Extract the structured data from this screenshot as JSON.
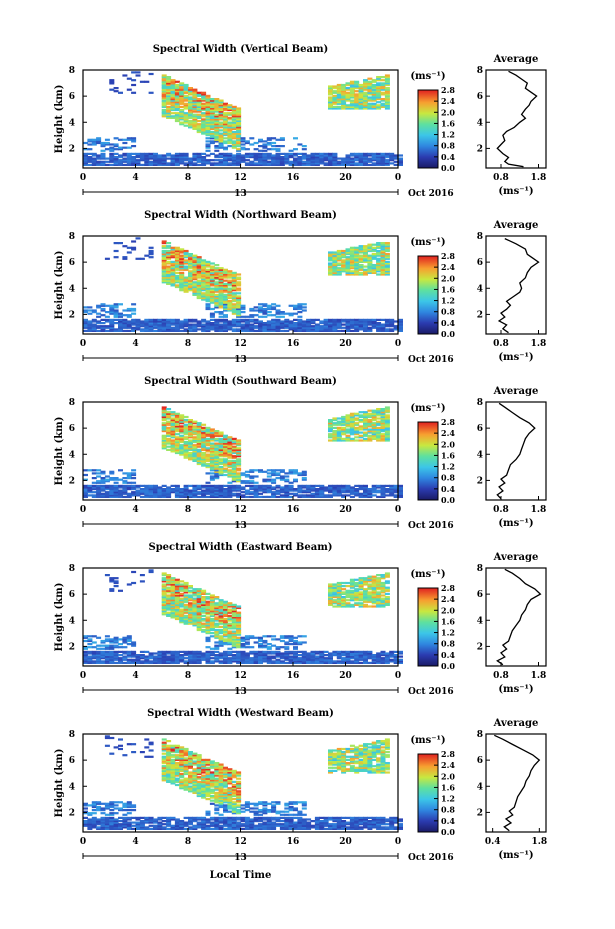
{
  "chart_data": {
    "type": "heatmap",
    "xlabel": "Local Time",
    "date_label": "Oct 2016",
    "day_marker": "13",
    "panels": [
      {
        "title": "Spectral Width (Vertical Beam)",
        "ylabel": "Height (km)",
        "xlim": [
          0,
          24
        ],
        "xticks": [
          "0",
          "4",
          "8",
          "12",
          "16",
          "20",
          "0"
        ],
        "ylim": [
          0.5,
          8
        ],
        "yticks": [
          "2",
          "4",
          "6",
          "8"
        ],
        "colorbar": {
          "unit": "(ms⁻¹)",
          "ticks": [
            "0.0",
            "0.4",
            "0.8",
            "1.2",
            "1.6",
            "2.0",
            "2.4",
            "2.8"
          ],
          "range": [
            0,
            2.8
          ]
        },
        "average": {
          "title": "Average",
          "xlabel": "(ms⁻¹)",
          "xticks": [
            "0.8",
            "1.8"
          ],
          "xlim": [
            0.4,
            2.0
          ],
          "yticks": [
            "2",
            "4",
            "6",
            "8"
          ],
          "profile": [
            [
              0.6,
              1.4
            ],
            [
              0.8,
              1.0
            ],
            [
              1.0,
              0.9
            ],
            [
              1.3,
              1.0
            ],
            [
              1.6,
              0.85
            ],
            [
              2.0,
              0.7
            ],
            [
              2.3,
              0.8
            ],
            [
              2.6,
              0.9
            ],
            [
              3.0,
              0.85
            ],
            [
              3.3,
              0.95
            ],
            [
              3.6,
              1.15
            ],
            [
              4.0,
              1.3
            ],
            [
              4.3,
              1.45
            ],
            [
              4.6,
              1.35
            ],
            [
              5.0,
              1.45
            ],
            [
              5.3,
              1.55
            ],
            [
              5.6,
              1.6
            ],
            [
              6.0,
              1.75
            ],
            [
              6.3,
              1.6
            ],
            [
              6.6,
              1.45
            ],
            [
              7.0,
              1.5
            ],
            [
              7.3,
              1.35
            ],
            [
              7.6,
              1.2
            ],
            [
              7.9,
              1.0
            ]
          ]
        }
      },
      {
        "title": "Spectral Width (Northward Beam)",
        "ylabel": "Height (km)",
        "xlim": [
          0,
          24
        ],
        "xticks": [
          "0",
          "4",
          "8",
          "12",
          "16",
          "20",
          "0"
        ],
        "ylim": [
          0.5,
          8
        ],
        "yticks": [
          "2",
          "4",
          "6",
          "8"
        ],
        "colorbar": {
          "unit": "(ms⁻¹)",
          "ticks": [
            "0.0",
            "0.4",
            "0.8",
            "1.2",
            "1.6",
            "2.0",
            "2.4",
            "2.8"
          ],
          "range": [
            0,
            2.8
          ]
        },
        "average": {
          "title": "Average",
          "xlabel": "(ms⁻¹)",
          "xticks": [
            "0.8",
            "1.8"
          ],
          "xlim": [
            0.4,
            2.0
          ],
          "yticks": [
            "2",
            "4",
            "6",
            "8"
          ],
          "profile": [
            [
              0.6,
              1.0
            ],
            [
              0.9,
              0.85
            ],
            [
              1.2,
              0.95
            ],
            [
              1.5,
              0.75
            ],
            [
              1.8,
              0.9
            ],
            [
              2.1,
              0.8
            ],
            [
              2.4,
              0.95
            ],
            [
              2.7,
              1.05
            ],
            [
              3.0,
              0.95
            ],
            [
              3.3,
              1.1
            ],
            [
              3.7,
              1.3
            ],
            [
              4.0,
              1.35
            ],
            [
              4.4,
              1.3
            ],
            [
              4.8,
              1.45
            ],
            [
              5.2,
              1.5
            ],
            [
              5.6,
              1.6
            ],
            [
              6.0,
              1.8
            ],
            [
              6.3,
              1.65
            ],
            [
              6.6,
              1.5
            ],
            [
              7.0,
              1.45
            ],
            [
              7.4,
              1.2
            ],
            [
              7.8,
              0.9
            ]
          ]
        }
      },
      {
        "title": "Spectral Width (Southward Beam)",
        "ylabel": "Height (km)",
        "xlim": [
          0,
          24
        ],
        "xticks": [
          "0",
          "4",
          "8",
          "12",
          "16",
          "20",
          "0"
        ],
        "ylim": [
          0.5,
          8
        ],
        "yticks": [
          "2",
          "4",
          "6",
          "8"
        ],
        "colorbar": {
          "unit": "(ms⁻¹)",
          "ticks": [
            "0.0",
            "0.4",
            "0.8",
            "1.2",
            "1.6",
            "2.0",
            "2.4",
            "2.8"
          ],
          "range": [
            0,
            2.8
          ]
        },
        "average": {
          "title": "Average",
          "xlabel": "(ms⁻¹)",
          "xticks": [
            "0.8",
            "1.8"
          ],
          "xlim": [
            0.4,
            2.0
          ],
          "yticks": [
            "2",
            "4",
            "6",
            "8"
          ],
          "profile": [
            [
              0.6,
              0.8
            ],
            [
              0.9,
              0.7
            ],
            [
              1.2,
              0.85
            ],
            [
              1.5,
              0.75
            ],
            [
              1.8,
              0.9
            ],
            [
              2.1,
              0.8
            ],
            [
              2.4,
              0.95
            ],
            [
              2.8,
              1.0
            ],
            [
              3.2,
              1.05
            ],
            [
              3.6,
              1.2
            ],
            [
              4.0,
              1.3
            ],
            [
              4.4,
              1.35
            ],
            [
              4.8,
              1.4
            ],
            [
              5.2,
              1.45
            ],
            [
              5.6,
              1.55
            ],
            [
              6.0,
              1.7
            ],
            [
              6.4,
              1.55
            ],
            [
              6.8,
              1.3
            ],
            [
              7.2,
              1.1
            ],
            [
              7.6,
              0.9
            ],
            [
              7.9,
              0.75
            ]
          ]
        }
      },
      {
        "title": "Spectral Width (Eastward Beam)",
        "ylabel": "Height (km)",
        "xlim": [
          0,
          24
        ],
        "xticks": [
          "0",
          "4",
          "8",
          "12",
          "16",
          "20",
          "0"
        ],
        "ylim": [
          0.5,
          8
        ],
        "yticks": [
          "2",
          "4",
          "6",
          "8"
        ],
        "colorbar": {
          "unit": "(ms⁻¹)",
          "ticks": [
            "0.0",
            "0.4",
            "0.8",
            "1.2",
            "1.6",
            "2.0",
            "2.4",
            "2.8"
          ],
          "range": [
            0,
            2.8
          ]
        },
        "average": {
          "title": "Average",
          "xlabel": "(ms⁻¹)",
          "xticks": [
            "0.8",
            "1.8"
          ],
          "xlim": [
            0.4,
            2.0
          ],
          "yticks": [
            "2",
            "4",
            "6",
            "8"
          ],
          "profile": [
            [
              0.6,
              0.85
            ],
            [
              0.9,
              0.7
            ],
            [
              1.2,
              0.9
            ],
            [
              1.5,
              0.8
            ],
            [
              1.8,
              0.95
            ],
            [
              2.1,
              0.85
            ],
            [
              2.4,
              1.0
            ],
            [
              2.8,
              1.05
            ],
            [
              3.2,
              1.1
            ],
            [
              3.6,
              1.2
            ],
            [
              4.0,
              1.3
            ],
            [
              4.4,
              1.35
            ],
            [
              4.8,
              1.45
            ],
            [
              5.2,
              1.5
            ],
            [
              5.6,
              1.6
            ],
            [
              6.0,
              1.85
            ],
            [
              6.4,
              1.7
            ],
            [
              6.8,
              1.45
            ],
            [
              7.2,
              1.3
            ],
            [
              7.6,
              1.1
            ],
            [
              7.9,
              0.9
            ]
          ]
        }
      },
      {
        "title": "Spectral Width (Westward Beam)",
        "ylabel": "Height (km)",
        "xlim": [
          0,
          24
        ],
        "xticks": [
          "0",
          "4",
          "8",
          "12",
          "16",
          "20",
          "0"
        ],
        "ylim": [
          0.5,
          8
        ],
        "yticks": [
          "2",
          "4",
          "6",
          "8"
        ],
        "colorbar": {
          "unit": "(ms⁻¹)",
          "ticks": [
            "0.0",
            "0.4",
            "0.8",
            "1.2",
            "1.6",
            "2.0",
            "2.4",
            "2.8"
          ],
          "range": [
            0,
            2.8
          ]
        },
        "average": {
          "title": "Average",
          "xlabel": "(ms⁻¹)",
          "xticks": [
            "0.4",
            "1.8"
          ],
          "xlim": [
            0.2,
            2.0
          ],
          "yticks": [
            "2",
            "4",
            "6",
            "8"
          ],
          "profile": [
            [
              0.6,
              0.9
            ],
            [
              0.9,
              0.75
            ],
            [
              1.2,
              0.95
            ],
            [
              1.5,
              0.8
            ],
            [
              1.8,
              1.0
            ],
            [
              2.1,
              0.9
            ],
            [
              2.4,
              1.05
            ],
            [
              2.8,
              1.1
            ],
            [
              3.2,
              1.15
            ],
            [
              3.6,
              1.25
            ],
            [
              4.0,
              1.35
            ],
            [
              4.4,
              1.4
            ],
            [
              4.8,
              1.5
            ],
            [
              5.2,
              1.55
            ],
            [
              5.6,
              1.65
            ],
            [
              6.0,
              1.8
            ],
            [
              6.4,
              1.6
            ],
            [
              6.8,
              1.3
            ],
            [
              7.2,
              1.0
            ],
            [
              7.6,
              0.7
            ],
            [
              7.9,
              0.45
            ]
          ]
        }
      }
    ]
  }
}
